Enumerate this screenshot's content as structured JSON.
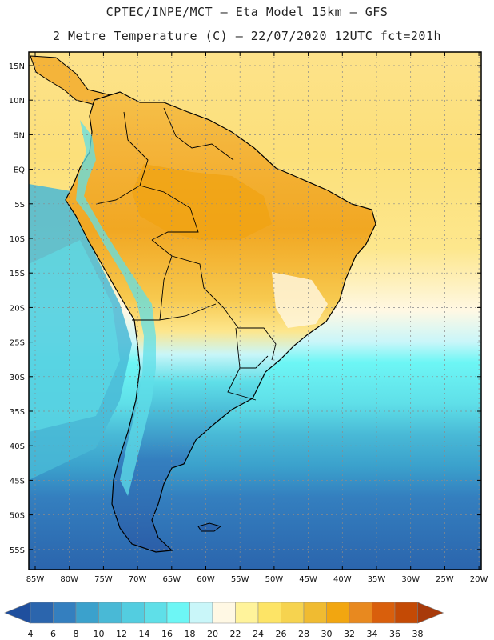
{
  "title": {
    "line1": "CPTEC/INPE/MCT –  Eta Model 15km – GFS",
    "line2": "2 Metre Temperature (C) – 22/07/2020 12UTC fct=201h"
  },
  "lat_labels": [
    "15N",
    "10N",
    "5N",
    "EQ",
    "5S",
    "10S",
    "15S",
    "20S",
    "25S",
    "30S",
    "35S",
    "40S",
    "45S",
    "50S",
    "55S"
  ],
  "lon_labels": [
    "85W",
    "80W",
    "75W",
    "70W",
    "65W",
    "60W",
    "55W",
    "50W",
    "45W",
    "40W",
    "35W",
    "30W",
    "25W",
    "20W"
  ],
  "colorbar": {
    "values": [
      "4",
      "6",
      "8",
      "10",
      "12",
      "14",
      "16",
      "18",
      "20",
      "22",
      "24",
      "26",
      "28",
      "30",
      "32",
      "34",
      "36",
      "38"
    ],
    "colors": [
      "#1f4f9e",
      "#2b65ad",
      "#347fbf",
      "#3ba1cc",
      "#49b9d6",
      "#53cde0",
      "#5fdfe8",
      "#6df6f5",
      "#c9f6f9",
      "#fff8e4",
      "#fff39b",
      "#fde466",
      "#f6d34f",
      "#f0bb31",
      "#f2a610",
      "#e8891f",
      "#d95f0c",
      "#c44a05",
      "#a83a0a"
    ]
  },
  "chart_data": {
    "type": "heatmap",
    "title": "2 Metre Temperature (C)",
    "variable": "2 Metre Temperature",
    "units": "C",
    "model": "Eta Model 15km - GFS",
    "date": "22/07/2020 12UTC",
    "forecast": "fct=201h",
    "lon_range": [
      -85,
      -20
    ],
    "lat_range": [
      -57,
      16
    ],
    "color_levels": [
      4,
      6,
      8,
      10,
      12,
      14,
      16,
      18,
      20,
      22,
      24,
      26,
      28,
      30,
      32,
      34,
      36,
      38
    ]
  }
}
